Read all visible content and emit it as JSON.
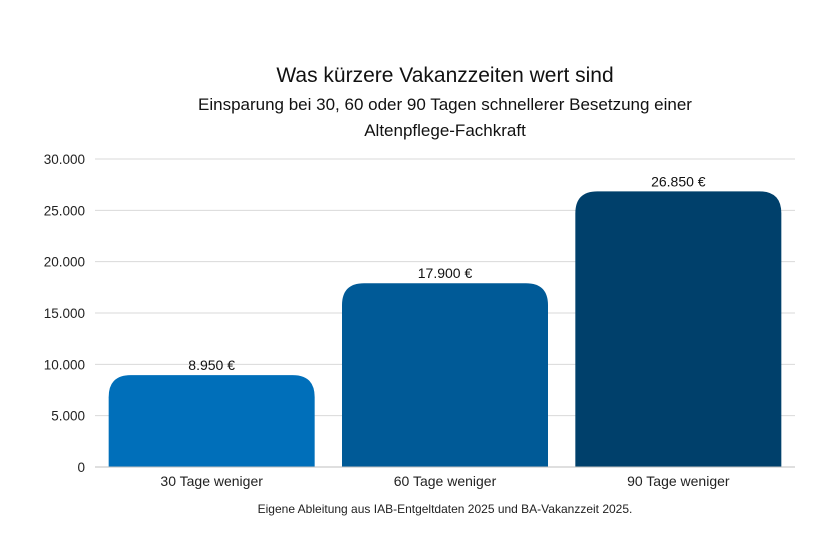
{
  "chart_data": {
    "type": "bar",
    "title": "Was kürzere Vakanzzeiten wert sind",
    "subtitle_lines": [
      "Einsparung bei 30, 60 oder 90 Tagen schnellerer Besetzung einer",
      "Altenpflege-Fachkraft"
    ],
    "categories": [
      "30 Tage weniger",
      "60 Tage weniger",
      "90 Tage weniger"
    ],
    "values": [
      8950,
      17900,
      26850
    ],
    "data_labels": [
      "8.950 €",
      "17.900 €",
      "26.850 €"
    ],
    "bar_colors": [
      "#006fba",
      "#005a97",
      "#00406b"
    ],
    "ylim": [
      0,
      30000
    ],
    "yticks": [
      0,
      5000,
      10000,
      15000,
      20000,
      25000,
      30000
    ],
    "ytick_labels": [
      "0",
      "5.000",
      "10.000",
      "15.000",
      "20.000",
      "25.000",
      "30.000"
    ],
    "grid": true,
    "source": "Eigene Ableitung aus IAB-Entgeltdaten 2025 und BA-Vakanzzeit 2025."
  }
}
